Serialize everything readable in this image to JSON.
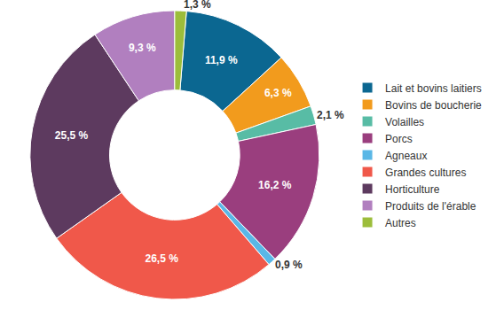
{
  "chart_data": {
    "type": "pie",
    "categories": [
      "Lait et bovins laitiers",
      "Bovins de boucherie",
      "Volailles",
      "Porcs",
      "Agneaux",
      "Grandes cultures",
      "Horticulture",
      "Produits de l'érable",
      "Autres"
    ],
    "values": [
      11.9,
      6.3,
      2.1,
      16.2,
      0.9,
      26.5,
      25.5,
      9.3,
      1.3
    ],
    "value_labels": [
      "11,9 %",
      "6,3 %",
      "2,1 %",
      "16,2 %",
      "0,9 %",
      "26,5 %",
      "25,5 %",
      "9,3 %",
      "1,3 %"
    ],
    "colors": [
      "#0b6791",
      "#f29b1d",
      "#58bca5",
      "#9a3e7e",
      "#5ab7e6",
      "#f0584a",
      "#5d3a5f",
      "#b17fbf",
      "#9cbd3b"
    ],
    "data_labels": true,
    "legend": "right"
  }
}
